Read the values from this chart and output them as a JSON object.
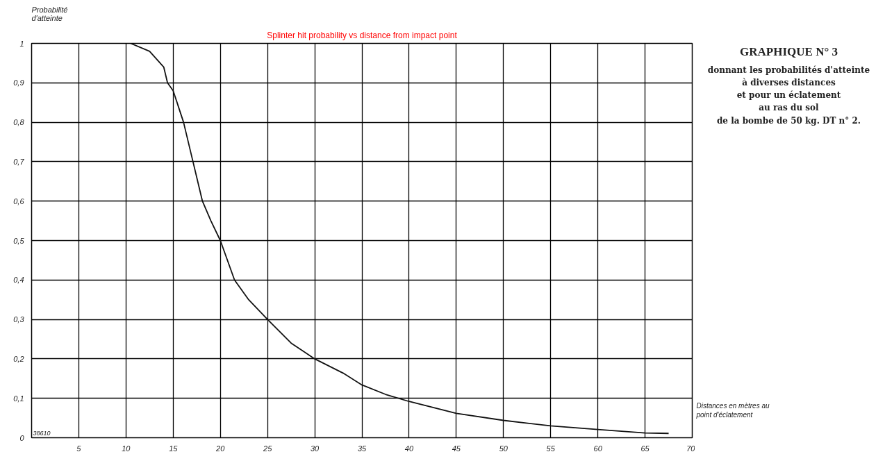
{
  "chart_data": {
    "type": "line",
    "title": "Splinter hit probability vs distance from impact point",
    "ylabel": "Probabilité\nd'atteinte",
    "xlabel": "Distances en mètres au\npoint d'éclatement",
    "annotations": [
      "GRAPHIQUE N° 3",
      "donnant les probabilités d'atteinte\nà diverses distances\net pour un éclatement\nau ras du sol\nde la bombe de 50 kg. DT n° 2.",
      "38610"
    ],
    "series": [
      {
        "color": "#111111",
        "x": [
          10.5,
          12.5,
          14,
          14.4,
          15,
          16.1,
          17.1,
          18.1,
          19,
          20,
          21.5,
          23,
          25,
          27.5,
          30,
          33,
          35,
          37.5,
          40,
          45,
          50,
          55,
          60,
          65,
          67.5
        ],
        "values": [
          1,
          0.98,
          0.94,
          0.9,
          0.88,
          0.8,
          0.7,
          0.6,
          0.55,
          0.5,
          0.4,
          0.35,
          0.3,
          0.24,
          0.2,
          0.164,
          0.134,
          0.11,
          0.092,
          0.062,
          0.044,
          0.03,
          0.021,
          0.012,
          0.011
        ]
      }
    ],
    "xlim": [
      0,
      70
    ],
    "ylim": [
      0,
      1
    ],
    "xticks": [
      5,
      10,
      15,
      20,
      25,
      30,
      35,
      40,
      45,
      50,
      55,
      60,
      65,
      70
    ],
    "yticks": [
      0,
      {
        "value": 0.1,
        "label": "0,1"
      },
      {
        "value": 0.2,
        "label": "0,2"
      },
      {
        "value": 0.3,
        "label": "0,3"
      },
      {
        "value": 0.4,
        "label": "0,4"
      },
      {
        "value": 0.5,
        "label": "0,5"
      },
      {
        "value": 0.6,
        "label": "0,6"
      },
      {
        "value": 0.7,
        "label": "0,7"
      },
      {
        "value": 0.8,
        "label": "0,8"
      },
      {
        "value": 0.9,
        "label": "0,9"
      },
      1
    ],
    "grid": true,
    "marker": "none",
    "line_style": "solid"
  }
}
